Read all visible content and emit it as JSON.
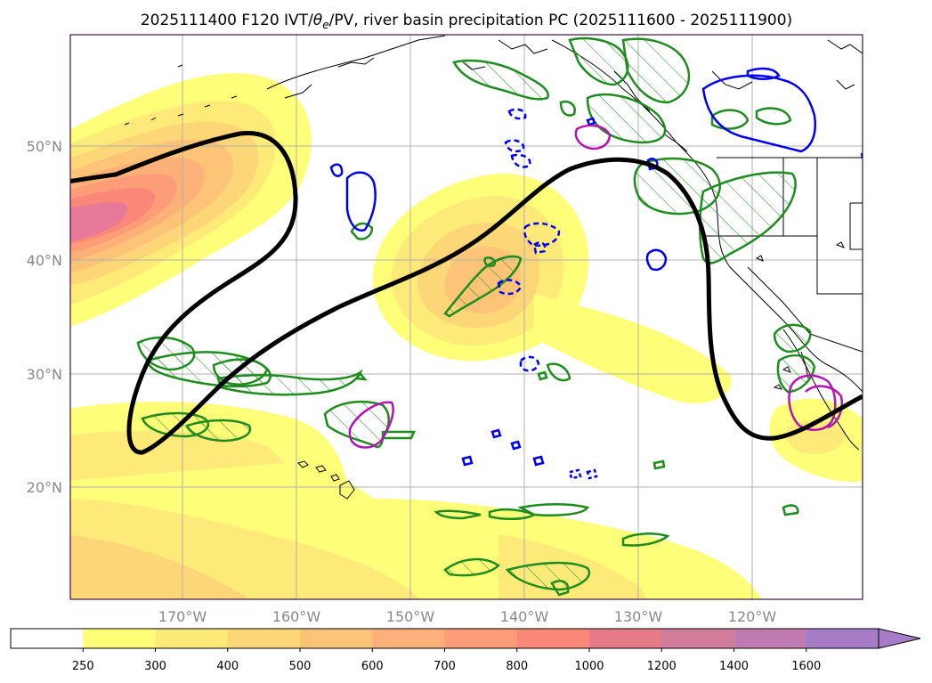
{
  "title": "2025111400 F120 IVT/θe/PV, river basin precipitation PC (2025111600 - 2025111900)",
  "title_parts": {
    "prefix": "2025111400 F120 IVT/",
    "theta": "θ",
    "sub": "e",
    "suffix": "/PV, river basin precipitation PC (2025111600 - 2025111900)"
  },
  "lat_labels": [
    "50°N",
    "40°N",
    "30°N",
    "20°N"
  ],
  "lon_labels": [
    "170°W",
    "160°W",
    "150°W",
    "140°W",
    "130°W",
    "120°W"
  ],
  "colorbar": {
    "labels": [
      "250",
      "300",
      "400",
      "500",
      "600",
      "700",
      "800",
      "1000",
      "1200",
      "1400",
      "1600"
    ],
    "colors": [
      "#ffffff",
      "#fefe78",
      "#fdea78",
      "#fdd678",
      "#fdc478",
      "#fdb078",
      "#fd9c78",
      "#f98878",
      "#e77a88",
      "#d27c9c",
      "#c07cb0",
      "#a67cc6"
    ]
  },
  "colors": {
    "ivt_yellow": "#fefe78",
    "ivt_orange": "#fdc478",
    "ivt_red": "#f98878",
    "ivt_pink": "#e77a98",
    "pv_line": "#000000",
    "green_contour": "#1e8c1e",
    "blue_contour": "#0000ee",
    "magenta_contour": "#b414b4",
    "coast": "#000000",
    "grid": "#b0b0b0"
  },
  "icons": {
    "colorbar_extend": "triangle-arrow"
  }
}
